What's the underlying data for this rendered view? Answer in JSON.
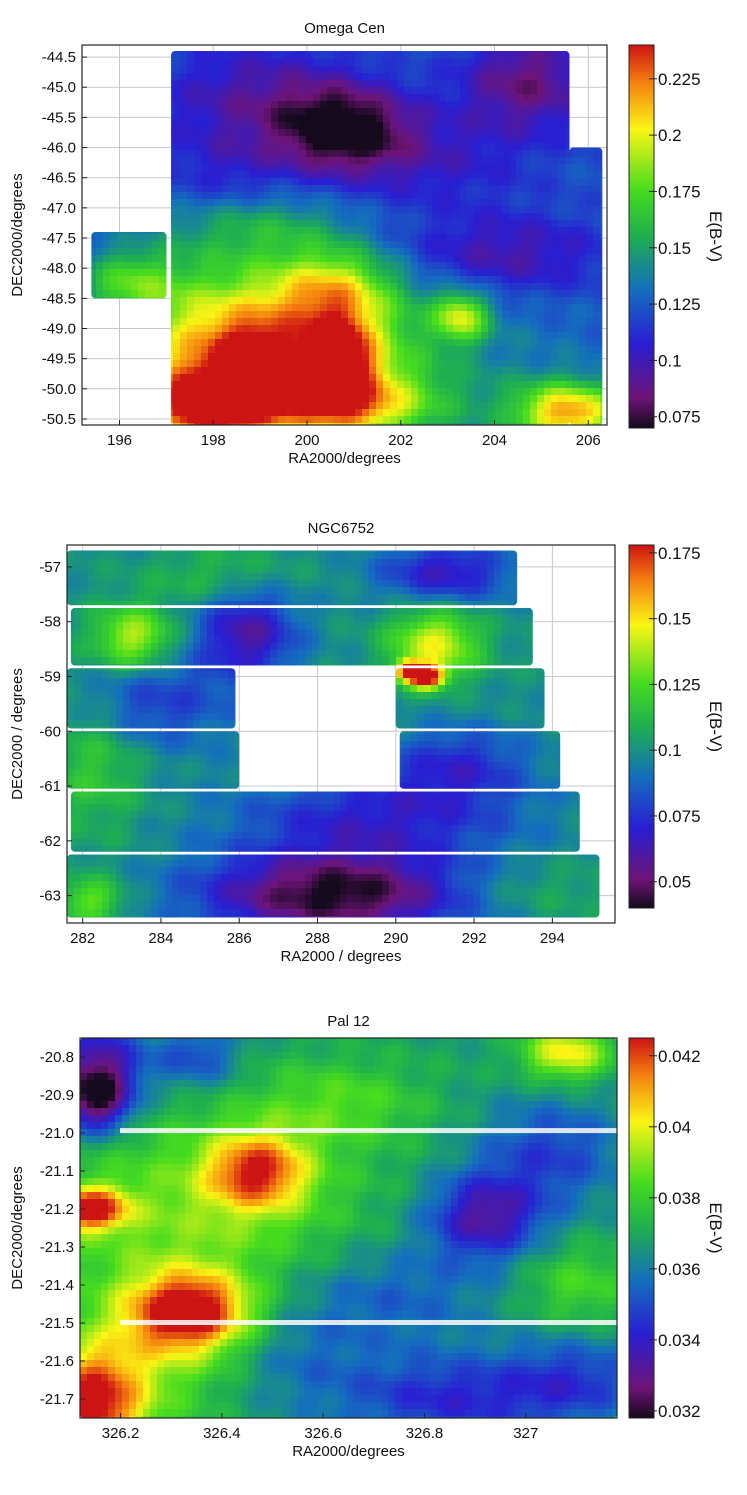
{
  "chart_data": [
    {
      "type": "heatmap",
      "title": "Omega Cen",
      "xlabel": "RA2000/degrees",
      "ylabel": "DEC2000/degrees",
      "colorbar_label": "E(B-V)",
      "xlim": [
        195.2,
        206.4
      ],
      "ylim": [
        -50.6,
        -44.3
      ],
      "xticks": [
        196,
        198,
        200,
        202,
        204,
        206
      ],
      "yticks": [
        -44.5,
        -45.0,
        -45.5,
        -46.0,
        -46.5,
        -47.0,
        -47.5,
        -48.0,
        -48.5,
        -49.0,
        -49.5,
        -50.0,
        -50.5
      ],
      "ytick_labels": [
        "-44.5",
        "-45.0",
        "-45.5",
        "-46.0",
        "-46.5",
        "-47.0",
        "-47.5",
        "-48.0",
        "-48.5",
        "-49.0",
        "-49.5",
        "-50.0",
        "-50.5"
      ],
      "colorbar_range": [
        0.07,
        0.24
      ],
      "colorbar_ticks": [
        0.075,
        0.1,
        0.125,
        0.15,
        0.175,
        0.2,
        0.225
      ],
      "colorbar_tick_labels": [
        "0.075",
        "0.1",
        "0.125",
        "0.15",
        "0.175",
        "0.2",
        "0.225"
      ],
      "grid": true,
      "coverage": [
        {
          "ra": [
            195.4,
            197.0
          ],
          "dec": [
            -48.5,
            -47.4
          ]
        },
        {
          "ra": [
            197.1,
            205.6
          ],
          "dec": [
            -50.6,
            -44.4
          ]
        },
        {
          "ra": [
            205.6,
            206.3
          ],
          "dec": [
            -50.6,
            -46.0
          ]
        }
      ],
      "base_value": 0.125,
      "features": [
        {
          "ra": 200.2,
          "dec": -49.6,
          "sx": 2.6,
          "sy": 0.9,
          "v": 0.07
        },
        {
          "ra": 198.4,
          "dec": -49.2,
          "sx": 1.6,
          "sy": 1.0,
          "v": 0.055
        },
        {
          "ra": 200.6,
          "dec": -48.3,
          "sx": 0.9,
          "sy": 0.45,
          "v": 0.05
        },
        {
          "ra": 198.0,
          "dec": -50.3,
          "sx": 1.0,
          "sy": 0.4,
          "v": 0.1
        },
        {
          "ra": 198.8,
          "dec": -49.6,
          "sx": 0.4,
          "sy": 0.3,
          "v": 0.08
        },
        {
          "ra": 200.7,
          "dec": -49.5,
          "sx": 0.5,
          "sy": 0.5,
          "v": 0.07
        },
        {
          "ra": 201.0,
          "dec": -50.3,
          "sx": 1.0,
          "sy": 0.35,
          "v": 0.05
        },
        {
          "ra": 205.6,
          "dec": -50.4,
          "sx": 0.8,
          "sy": 0.35,
          "v": 0.09
        },
        {
          "ra": 203.3,
          "dec": -48.8,
          "sx": 0.4,
          "sy": 0.3,
          "v": 0.06
        },
        {
          "ra": 196.2,
          "dec": -48.2,
          "sx": 0.7,
          "sy": 0.35,
          "v": 0.035
        },
        {
          "ra": 200.8,
          "dec": -45.7,
          "sx": 1.0,
          "sy": 0.5,
          "v": -0.05
        },
        {
          "ra": 199.0,
          "dec": -45.2,
          "sx": 1.6,
          "sy": 0.7,
          "v": -0.03
        },
        {
          "ra": 204.7,
          "dec": -44.9,
          "sx": 1.0,
          "sy": 0.6,
          "v": -0.04
        },
        {
          "ra": 202.6,
          "dec": -46.2,
          "sx": 1.6,
          "sy": 0.6,
          "v": -0.02
        },
        {
          "ra": 204.2,
          "dec": -47.8,
          "sx": 1.6,
          "sy": 0.5,
          "v": -0.03
        },
        {
          "ra": 198.2,
          "dec": -46.5,
          "sx": 1.0,
          "sy": 0.5,
          "v": -0.015
        },
        {
          "ra": 199.0,
          "dec": -47.3,
          "sx": 1.4,
          "sy": 0.4,
          "v": 0.025
        },
        {
          "ra": 203.0,
          "dec": -49.4,
          "sx": 1.2,
          "sy": 0.45,
          "v": -0.015
        }
      ]
    },
    {
      "type": "heatmap",
      "title": "NGC6752",
      "xlabel": "RA2000 / degrees",
      "ylabel": "DEC2000 / degrees",
      "colorbar_label": "E(B-V)",
      "xlim": [
        281.6,
        295.6
      ],
      "ylim": [
        -63.5,
        -56.6
      ],
      "xticks": [
        282,
        284,
        286,
        288,
        290,
        292,
        294
      ],
      "yticks": [
        -57,
        -58,
        -59,
        -60,
        -61,
        -62,
        -63
      ],
      "ytick_labels": [
        "-57",
        "-58",
        "-59",
        "-60",
        "-61",
        "-62",
        "-63"
      ],
      "colorbar_range": [
        0.04,
        0.178
      ],
      "colorbar_ticks": [
        0.05,
        0.075,
        0.1,
        0.125,
        0.15,
        0.175
      ],
      "colorbar_tick_labels": [
        "0.05",
        "0.075",
        "0.1",
        "0.125",
        "0.15",
        "0.175"
      ],
      "grid": true,
      "coverage": [
        {
          "ra": [
            281.6,
            293.1
          ],
          "dec": [
            -57.7,
            -56.7
          ]
        },
        {
          "ra": [
            281.7,
            293.5
          ],
          "dec": [
            -58.8,
            -57.75
          ]
        },
        {
          "ra": [
            281.6,
            285.9
          ],
          "dec": [
            -59.95,
            -58.85
          ]
        },
        {
          "ra": [
            290.0,
            293.8
          ],
          "dec": [
            -59.95,
            -58.85
          ]
        },
        {
          "ra": [
            281.6,
            286.0
          ],
          "dec": [
            -61.05,
            -60.0
          ]
        },
        {
          "ra": [
            290.1,
            294.2
          ],
          "dec": [
            -61.05,
            -60.0
          ]
        },
        {
          "ra": [
            281.7,
            294.7
          ],
          "dec": [
            -62.2,
            -61.1
          ]
        },
        {
          "ra": [
            281.6,
            295.2
          ],
          "dec": [
            -63.4,
            -62.25
          ]
        }
      ],
      "base_value": 0.1,
      "features": [
        {
          "ra": 288.4,
          "dec": -63.0,
          "sx": 2.4,
          "sy": 0.55,
          "v": -0.06
        },
        {
          "ra": 289.5,
          "dec": -61.6,
          "sx": 2.5,
          "sy": 0.6,
          "v": -0.03
        },
        {
          "ra": 286.2,
          "dec": -58.2,
          "sx": 0.9,
          "sy": 0.6,
          "v": -0.04
        },
        {
          "ra": 291.3,
          "dec": -57.1,
          "sx": 1.2,
          "sy": 0.4,
          "v": -0.035
        },
        {
          "ra": 283.6,
          "dec": -59.5,
          "sx": 1.5,
          "sy": 0.6,
          "v": -0.025
        },
        {
          "ra": 291.6,
          "dec": -60.6,
          "sx": 1.3,
          "sy": 0.5,
          "v": -0.025
        },
        {
          "ra": 290.8,
          "dec": -59.0,
          "sx": 0.3,
          "sy": 0.15,
          "v": 0.085
        },
        {
          "ra": 290.3,
          "dec": -58.9,
          "sx": 0.2,
          "sy": 0.13,
          "v": 0.08
        },
        {
          "ra": 291.0,
          "dec": -58.4,
          "sx": 0.8,
          "sy": 0.45,
          "v": 0.045
        },
        {
          "ra": 283.3,
          "dec": -58.3,
          "sx": 0.7,
          "sy": 0.4,
          "v": 0.04
        },
        {
          "ra": 282.3,
          "dec": -60.4,
          "sx": 0.9,
          "sy": 1.0,
          "v": 0.02
        },
        {
          "ra": 282.2,
          "dec": -63.1,
          "sx": 0.6,
          "sy": 0.3,
          "v": 0.03
        },
        {
          "ra": 285.5,
          "dec": -57.2,
          "sx": 1.2,
          "sy": 0.4,
          "v": 0.015
        },
        {
          "ra": 293.6,
          "dec": -62.9,
          "sx": 1.5,
          "sy": 0.4,
          "v": 0.01
        }
      ]
    },
    {
      "type": "heatmap",
      "title": "Pal 12",
      "xlabel": "RA2000/degrees",
      "ylabel": "DEC2000/degrees",
      "colorbar_label": "E(B-V)",
      "xlim": [
        326.12,
        327.18
      ],
      "ylim": [
        -21.75,
        -20.75
      ],
      "xticks": [
        326.2,
        326.4,
        326.6,
        326.8,
        327.0
      ],
      "yticks": [
        -20.8,
        -20.9,
        -21.0,
        -21.1,
        -21.2,
        -21.3,
        -21.4,
        -21.5,
        -21.6,
        -21.7
      ],
      "ytick_labels": [
        "-20.8",
        "-20.9",
        "-21.0",
        "-21.1",
        "-21.2",
        "-21.3",
        "-21.4",
        "-21.5",
        "-21.6",
        "-21.7"
      ],
      "colorbar_range": [
        0.0318,
        0.0425
      ],
      "colorbar_ticks": [
        0.032,
        0.034,
        0.036,
        0.038,
        0.04,
        0.042
      ],
      "colorbar_tick_labels": [
        "0.032",
        "0.034",
        "0.036",
        "0.038",
        "0.04",
        "0.042"
      ],
      "grid": false,
      "coverage": [
        {
          "ra": [
            326.12,
            327.18
          ],
          "dec": [
            -21.75,
            -20.75
          ]
        }
      ],
      "base_value": 0.0368,
      "features": [
        {
          "ra": 326.14,
          "dec": -21.72,
          "sx": 0.07,
          "sy": 0.1,
          "v": 0.0055
        },
        {
          "ra": 326.34,
          "dec": -21.47,
          "sx": 0.08,
          "sy": 0.07,
          "v": 0.0055
        },
        {
          "ra": 326.14,
          "dec": -21.2,
          "sx": 0.05,
          "sy": 0.04,
          "v": 0.0055
        },
        {
          "ra": 326.47,
          "dec": -21.1,
          "sx": 0.07,
          "sy": 0.07,
          "v": 0.0045
        },
        {
          "ra": 326.36,
          "dec": -21.2,
          "sx": 0.22,
          "sy": 0.18,
          "v": 0.002
        },
        {
          "ra": 326.25,
          "dec": -21.58,
          "sx": 0.12,
          "sy": 0.15,
          "v": 0.002
        },
        {
          "ra": 326.63,
          "dec": -20.92,
          "sx": 0.12,
          "sy": 0.08,
          "v": 0.0015
        },
        {
          "ra": 327.08,
          "dec": -20.79,
          "sx": 0.06,
          "sy": 0.05,
          "v": 0.0035
        },
        {
          "ra": 327.1,
          "dec": -21.4,
          "sx": 0.08,
          "sy": 0.08,
          "v": 0.0015
        },
        {
          "ra": 326.16,
          "dec": -20.82,
          "sx": 0.06,
          "sy": 0.08,
          "v": -0.0035
        },
        {
          "ra": 326.15,
          "dec": -20.92,
          "sx": 0.05,
          "sy": 0.06,
          "v": -0.004
        },
        {
          "ra": 326.92,
          "dec": -21.22,
          "sx": 0.08,
          "sy": 0.08,
          "v": -0.0035
        },
        {
          "ra": 327.05,
          "dec": -21.05,
          "sx": 0.1,
          "sy": 0.1,
          "v": -0.002
        },
        {
          "ra": 326.73,
          "dec": -21.43,
          "sx": 0.15,
          "sy": 0.1,
          "v": -0.0015
        },
        {
          "ra": 326.85,
          "dec": -21.7,
          "sx": 0.15,
          "sy": 0.08,
          "v": -0.0025
        },
        {
          "ra": 327.1,
          "dec": -21.65,
          "sx": 0.1,
          "sy": 0.08,
          "v": -0.002
        },
        {
          "ra": 326.35,
          "dec": -20.8,
          "sx": 0.06,
          "sy": 0.06,
          "v": -0.002
        },
        {
          "ra": 326.55,
          "dec": -21.6,
          "sx": 0.1,
          "sy": 0.1,
          "v": -0.001
        }
      ]
    }
  ]
}
